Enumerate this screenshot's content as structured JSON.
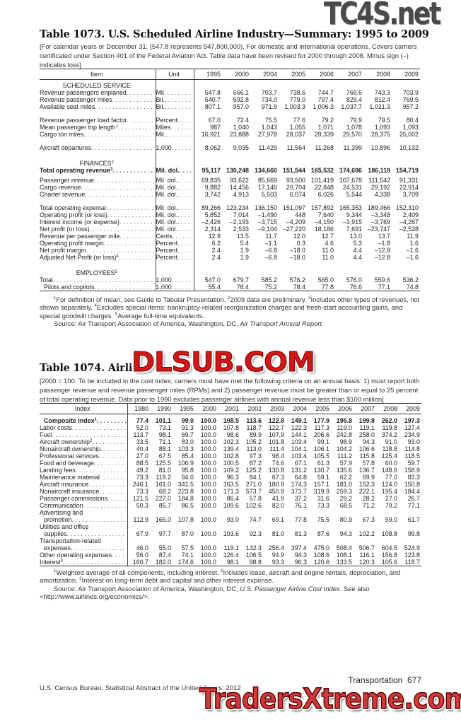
{
  "watermarks": {
    "top": "TC4S.net",
    "middle": "DLSUB.COM",
    "bottom": "TradersXtreme.com"
  },
  "table1073": {
    "title": "Table 1073. U.S. Scheduled Airline Industry—Summary: 1995 to 2009",
    "headnote": "[For calendar years or December 31, (547.8 represents 547,800,000). For domestic and international operations. Covers carriers certificated under Section 401 of the Federal Aviation Act. Table data have been revised for 2000 through 2008. Minus sign (–) indicates loss]",
    "columns": {
      "item": "Item",
      "unit": "Unit",
      "years": [
        "1995",
        "2000",
        "2004",
        "2005",
        "2006",
        "2007",
        "2008",
        "2009"
      ]
    },
    "sections": [
      {
        "heading": "SCHEDULED SERVICE",
        "heading_sup": "",
        "groups": [
          [
            {
              "label": "Revenue passengers enplaned",
              "unit": "Mil",
              "values": [
                "547.8",
                "666.1",
                "703.7",
                "738.6",
                "744.7",
                "769.6",
                "743.3",
                "703.9"
              ]
            },
            {
              "label": "Revenue passenger miles",
              "unit": "Bil.",
              "values": [
                "540.7",
                "692.8",
                "734.0",
                "779.0",
                "797.4",
                "829.4",
                "812.4",
                "769.5"
              ]
            },
            {
              "label": "Available seat miles",
              "unit": "Bil.",
              "values": [
                "807.1",
                "957.0",
                "971.9",
                "1,003.3",
                "1,006.3",
                "1,037.7",
                "1,021.3",
                "957.2"
              ]
            }
          ],
          [
            {
              "label": "Revenue passenger load factor",
              "unit": "Percent",
              "values": [
                "67.0",
                "72.4",
                "75.5",
                "77.6",
                "79.2",
                "79.9",
                "79.5",
                "80.4"
              ]
            },
            {
              "label": "Mean passenger trip length",
              "sup": "1",
              "unit": "Miles",
              "values": [
                "987",
                "1,040",
                "1,043",
                "1,055",
                "1,071",
                "1,078",
                "1,093",
                "1,093"
              ]
            },
            {
              "label": "Cargo ton miles",
              "unit": "Mil.",
              "values": [
                "16,921",
                "23,888",
                "27,978",
                "28,037",
                "29,339",
                "29,570",
                "28,375",
                "25,002"
              ]
            }
          ],
          [
            {
              "label": "Aircraft departures",
              "unit": "1,000",
              "values": [
                "8,062",
                "9,035",
                "11,429",
                "11,564",
                "11,268",
                "11,399",
                "10,896",
                "10,132"
              ]
            }
          ]
        ]
      },
      {
        "heading": "FINANCES",
        "heading_sup": "2",
        "groups": [
          [
            {
              "label": "Total operating revenue",
              "sup": "3",
              "unit": "Mil. dol.",
              "bold": true,
              "values": [
                "95,117",
                "130,248",
                "134,660",
                "151,544",
                "165,532",
                "174,696",
                "186,119",
                "154,719"
              ]
            }
          ],
          [
            {
              "label": "Passenger revenue",
              "unit": "Mil. dol.",
              "values": [
                "69,835",
                "93,622",
                "85,669",
                "93,500",
                "101,419",
                "107,678",
                "111,542",
                "91,331"
              ]
            },
            {
              "label": "Cargo revenue",
              "unit": "Mil. dol.",
              "values": [
                "9,882",
                "14,456",
                "17,146",
                "20,704",
                "22,848",
                "24,531",
                "29,192",
                "22,914"
              ]
            },
            {
              "label": "Charter revenue",
              "unit": "Mil. dol.",
              "values": [
                "3,742",
                "4,913",
                "5,503",
                "6,074",
                "6,026",
                "5,544",
                "4,338",
                "3,709"
              ]
            }
          ],
          [
            {
              "label": "Total operating expense",
              "unit": "Mil. dol.",
              "values": [
                "89,266",
                "123,234",
                "136,150",
                "151,097",
                "157,892",
                "165,353",
                "189,466",
                "152,310"
              ]
            },
            {
              "label": "Operating profit (or loss)",
              "unit": "Mil. dol.",
              "values": [
                "5,852",
                "7,014",
                "–1,490",
                "448",
                "7,640",
                "9,344",
                "–3,348",
                "2,409"
              ]
            },
            {
              "label": "Interest income (or expense)",
              "unit": "Mil. dol.",
              "values": [
                "–2,426",
                "–2,193",
                "–3,715",
                "–4,209",
                "–4,150",
                "–3,915",
                "–3,769",
                "–4,267"
              ]
            },
            {
              "label": "Net profit (or loss)",
              "unit": "Mil. dol.",
              "values": [
                "2,314",
                "2,533",
                "–9,104",
                "–27,220",
                "18,186",
                "7,691",
                "–23,747",
                "–2,528"
              ]
            },
            {
              "label": "Revenue per passenger mile",
              "unit": "Cents",
              "values": [
                "12.9",
                "13.5",
                "11.7",
                "12.0",
                "12.7",
                "13.0",
                "13.7",
                "11.9"
              ]
            },
            {
              "label": "Operating profit margin",
              "unit": "Percent",
              "values": [
                "6.2",
                "5.4",
                "–1.1",
                "0.3",
                "4.6",
                "5.3",
                "–1.8",
                "1.6"
              ]
            },
            {
              "label": "Net profit margin",
              "unit": "Percent",
              "values": [
                "2.4",
                "1.9",
                "–6.8",
                "–18.0",
                "11.0",
                "4.4",
                "–12.8",
                "–1.6"
              ]
            },
            {
              "label": "Adjusted Net Profit (or loss)",
              "sup": "4",
              "unit": "Percent",
              "values": [
                "2.4",
                "1.9",
                "–6.8",
                "–18.0",
                "11.0",
                "4.4",
                "–12.8",
                "–1.6"
              ]
            }
          ]
        ]
      },
      {
        "heading": "EMPLOYEES",
        "heading_sup": "5",
        "groups": [
          [
            {
              "label": "Total",
              "unit": "1,000",
              "values": [
                "547.0",
                "679.7",
                "585.2",
                "576.2",
                "565.0",
                "576.0",
                "559.6",
                "536.2"
              ]
            },
            {
              "label": "Pilots and copilots",
              "unit": "1,000",
              "indent": true,
              "values": [
                "55.4",
                "78.4",
                "75.2",
                "78.4",
                "77.8",
                "76.6",
                "77.1",
                "74.8"
              ]
            }
          ]
        ]
      }
    ],
    "footnotes": [
      {
        "parts": [
          {
            "sup": "1",
            "text": "For definition of mean, see Guide to Tabular Presentation. "
          },
          {
            "sup": "2",
            "text": "2009 data are preliminary. "
          },
          {
            "sup": "3",
            "text": "Includes other types of revenues, not shown separately. "
          },
          {
            "sup": "4",
            "text": "Excludes special items: bankruptcy-related reorganization charges and fresh-start accounting gains, and special goodwill charges. "
          },
          {
            "sup": "5",
            "text": "Average full-time equivalents."
          }
        ]
      }
    ],
    "source": {
      "prefix": "Source: Air Transport Association of America, Washington, DC, ",
      "publication": "Air Transport Annual Report",
      "suffix": "."
    }
  },
  "table1074": {
    "title": "Table 1074. Airline",
    "headnote": "[2000 = 100. To be included in the cost index, carriers must have met the following criteria on an annual basis: 1) must report both passenger revenue and revenue passenger miles (RPMs) and 2) passenger revenue must be greater than or equal to 25 percent of total operating revenue. Data prior to 1990 excludes passenger airlines with annual revenue less than $100 million]",
    "columns": {
      "index": "Index",
      "years": [
        "1980",
        "1990",
        "1995",
        "2000",
        "2001",
        "2002",
        "2003",
        "2004",
        "2005",
        "2006",
        "2007",
        "2008",
        "2009"
      ]
    },
    "rows": [
      {
        "label": [
          "Composite index"
        ],
        "sup": "1",
        "bold": true,
        "values": [
          "77.4",
          "101.1",
          "99.0",
          "100.0",
          "108.5",
          "113.6",
          "122.8",
          "149.1",
          "177.9",
          "195.8",
          "199.8",
          "262.0",
          "197.3"
        ]
      },
      {
        "label": [
          "Labor costs"
        ],
        "values": [
          "52.0",
          "73.1",
          "91.3",
          "100.0",
          "107.8",
          "118.7",
          "122.7",
          "122.3",
          "117.3",
          "119.0",
          "119.1",
          "119.8",
          "127.4"
        ]
      },
      {
        "label": [
          "Fuel"
        ],
        "values": [
          "113.7",
          "98.1",
          "69.7",
          "100.0",
          "98.6",
          "89.9",
          "107.9",
          "144.1",
          "206.6",
          "242.8",
          "258.0",
          "374.2",
          "234.9"
        ]
      },
      {
        "label": [
          "Aircraft ownership"
        ],
        "sup": "2",
        "values": [
          "33.5",
          "71.1",
          "83.0",
          "100.0",
          "102.3",
          "105.2",
          "101.8",
          "103.4",
          "99.1",
          "98.9",
          "94.3",
          "91.0",
          "93.0"
        ]
      },
      {
        "label": [
          "Nonaircraft ownership"
        ],
        "values": [
          "40.4",
          "88.1",
          "103.3",
          "100.0",
          "139.4",
          "113.0",
          "111.4",
          "104.1",
          "106.1",
          "104.2",
          "106.6",
          "118.8",
          "114.8"
        ]
      },
      {
        "label": [
          "Professional services"
        ],
        "values": [
          "27.0",
          "67.5",
          "85.4",
          "100.0",
          "102.8",
          "97.3",
          "98.4",
          "103.4",
          "105.5",
          "111.2",
          "115.8",
          "125.4",
          "118.5"
        ]
      },
      {
        "label": [
          "Food and beverage"
        ],
        "values": [
          "88.5",
          "125.5",
          "106.9",
          "100.0",
          "100.5",
          "87.2",
          "74.6",
          "67.1",
          "61.3",
          "57.9",
          "57.8",
          "60.0",
          "59.7"
        ]
      },
      {
        "label": [
          "Landing fees"
        ],
        "values": [
          "49.2",
          "81.0",
          "95.8",
          "100.0",
          "109.2",
          "125.2",
          "130.8",
          "131.2",
          "130.7",
          "135.6",
          "136.7",
          "148.6",
          "158.9"
        ]
      },
      {
        "label": [
          "Maintenance material"
        ],
        "values": [
          "73.3",
          "119.2",
          "94.0",
          "100.0",
          "96.3",
          "84.1",
          "67.3",
          "64.8",
          "59.1",
          "62.2",
          "69.9",
          "77.0",
          "83.3"
        ]
      },
      {
        "label": [
          "Aircraft insurance"
        ],
        "values": [
          "246.1",
          "161.0",
          "341.5",
          "100.0",
          "163.5",
          "271.0",
          "180.9",
          "174.3",
          "157.1",
          "181.0",
          "152.3",
          "124.0",
          "150.8"
        ]
      },
      {
        "label": [
          "Nonaircraft insurance"
        ],
        "values": [
          "73.3",
          "68.2",
          "223.8",
          "100.0",
          "171.3",
          "573.7",
          "450.9",
          "373.7",
          "319.9",
          "259.3",
          "222.1",
          "195.4",
          "184.4"
        ]
      },
      {
        "label": [
          "Passenger commissions"
        ],
        "values": [
          "121.5",
          "227.0",
          "184.8",
          "100.0",
          "86.4",
          "57.8",
          "41.9",
          "37.2",
          "31.6",
          "29.2",
          "28.2",
          "27.0",
          "26.7"
        ]
      },
      {
        "label": [
          "Communication"
        ],
        "values": [
          "50.3",
          "85.7",
          "86.5",
          "100.0",
          "109.6",
          "102.6",
          "82.0",
          "76.1",
          "73.3",
          "68.5",
          "71.2",
          "79.2",
          "77.1"
        ]
      },
      {
        "label": [
          "Advertising and",
          "promotion"
        ],
        "values": [
          "112.9",
          "165.0",
          "107.8",
          "100.0",
          "93.0",
          "74.7",
          "69.1",
          "77.8",
          "75.5",
          "80.9",
          "67.3",
          "59.0",
          "61.7"
        ]
      },
      {
        "label": [
          "Utilities and office",
          "supplies"
        ],
        "values": [
          "67.9",
          "97.7",
          "87.0",
          "100.0",
          "103.6",
          "92.3",
          "81.0",
          "81.3",
          "87.6",
          "94.3",
          "102.2",
          "108.8",
          "99.8"
        ]
      },
      {
        "label": [
          "Transportation-related",
          "expenses"
        ],
        "values": [
          "46.0",
          "55.0",
          "57.5",
          "100.0",
          "119.1",
          "132.3",
          "256.4",
          "397.4",
          "475.0",
          "508.4",
          "506.7",
          "604.5",
          "524.9"
        ]
      },
      {
        "label": [
          "Other operating expenses"
        ],
        "values": [
          "56.0",
          "87.4",
          "74.1",
          "100.0",
          "126.4",
          "106.5",
          "94.9",
          "94.3",
          "108.6",
          "108.1",
          "116.1",
          "156.8",
          "123.8"
        ]
      },
      {
        "label": [
          "Interest"
        ],
        "sup": "3",
        "values": [
          "160.7",
          "182.0",
          "174.6",
          "100.0",
          "98.1",
          "98.8",
          "93.3",
          "96.3",
          "120.6",
          "133.5",
          "120.3",
          "105.6",
          "118.7"
        ]
      }
    ],
    "footnotes": [
      {
        "parts": [
          {
            "sup": "1",
            "text": "Weighted average of all components, including interest. "
          },
          {
            "sup": "2",
            "text": "Includes lease, aircraft and engine rentals, depreciation, and amortization. "
          },
          {
            "sup": "3",
            "text": "Interest on long-term debt and capital and other interest expense."
          }
        ]
      }
    ],
    "source": {
      "prefix": "Source: Air Transport Association of America, Washington, DC, ",
      "publication": "U.S. Passenger Airline Cost Index",
      "suffix": ". See also <http://www.airlines.org/economics/>."
    }
  },
  "footer": {
    "section_page": "Transportation  677",
    "publication": "U.S. Census Bureau, Statistical Abstract of the United States: 2012"
  }
}
